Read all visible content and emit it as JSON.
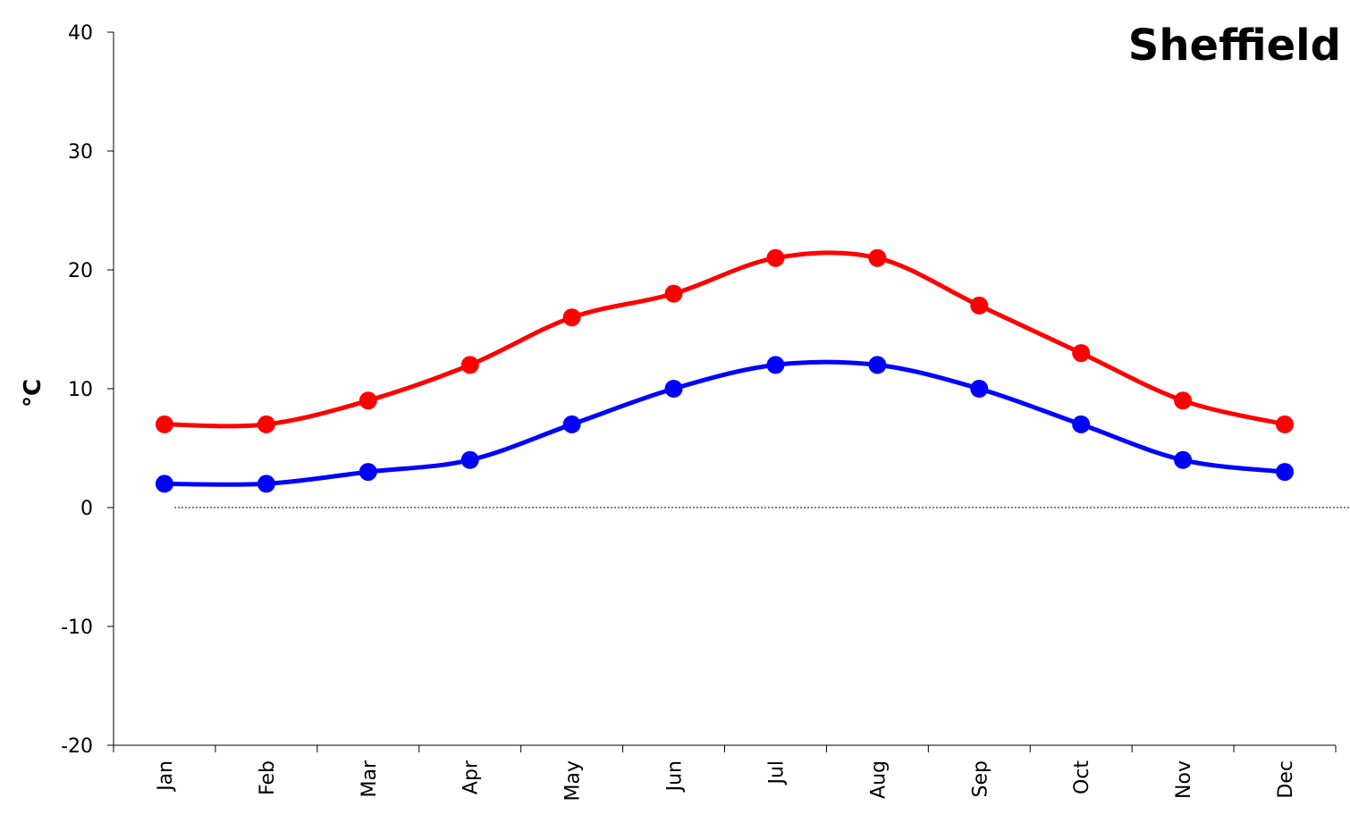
{
  "chart_data": {
    "type": "line",
    "title": "Sheffield",
    "xlabel": "",
    "ylabel": "°C",
    "categories": [
      "Jan",
      "Feb",
      "Mar",
      "Apr",
      "May",
      "Jun",
      "Jul",
      "Aug",
      "Sep",
      "Oct",
      "Nov",
      "Dec"
    ],
    "ylim": [
      -20,
      40
    ],
    "yticks": [
      40,
      30,
      20,
      10,
      0,
      -10,
      -20
    ],
    "grid": false,
    "legend": "none",
    "zero_line": {
      "value": 0,
      "style": "dotted"
    },
    "smoothed": true,
    "series": [
      {
        "color": "#ff0000",
        "values": [
          7,
          7,
          9,
          12,
          16,
          18,
          21,
          21,
          17,
          13,
          9,
          7
        ]
      },
      {
        "color": "#0000ff",
        "values": [
          2,
          2,
          3,
          4,
          7,
          10,
          12,
          12,
          10,
          7,
          4,
          3
        ]
      }
    ]
  }
}
